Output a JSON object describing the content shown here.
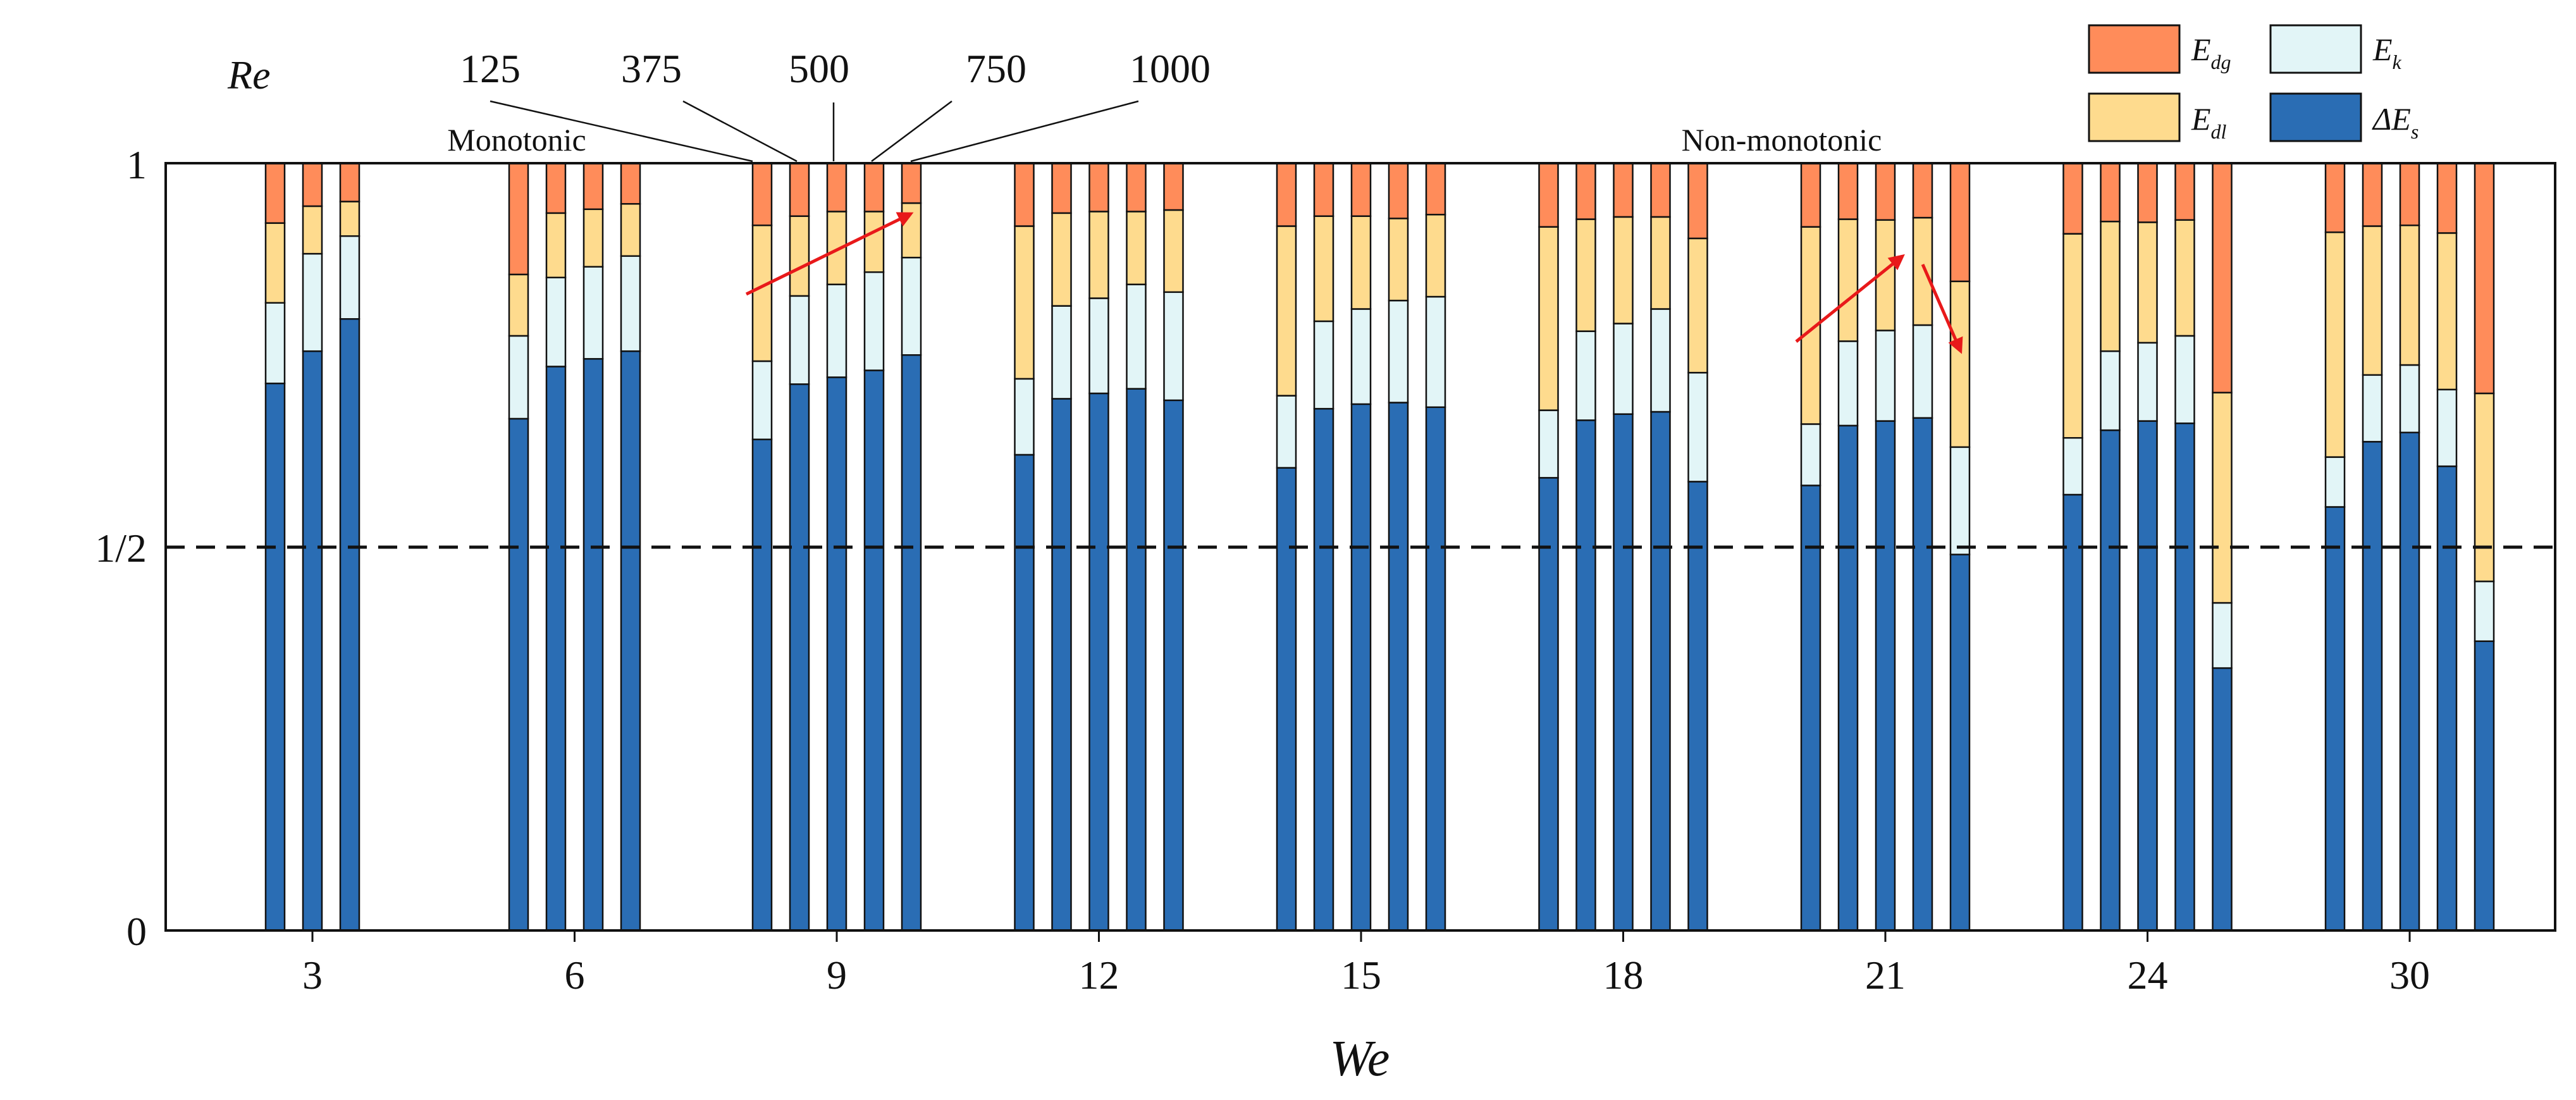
{
  "chart_data": {
    "type": "bar",
    "stacked": true,
    "normalized": true,
    "title": "",
    "xlabel": "We",
    "ylabel": "Re",
    "ylim": [
      0,
      1
    ],
    "y_ticks": [
      "0",
      "1/2",
      "1"
    ],
    "reference_line": {
      "y": 0.5,
      "style": "dashed"
    },
    "categories": [
      "3",
      "6",
      "9",
      "12",
      "15",
      "18",
      "21",
      "24",
      "30"
    ],
    "re_values": [
      "125",
      "375",
      "500",
      "750",
      "1000"
    ],
    "stack_order": [
      "ΔE_s",
      "E_k",
      "E_dl",
      "E_dg"
    ],
    "legend": [
      {
        "key": "E_dg",
        "base": "E",
        "sub": "dg",
        "color": "#FF8C5A"
      },
      {
        "key": "E_k",
        "base": "E",
        "sub": "k",
        "color": "#E2F5F7"
      },
      {
        "key": "E_dl",
        "base": "E",
        "sub": "dl",
        "color": "#FEDB8E"
      },
      {
        "key": "dE_s",
        "base": "ΔE",
        "sub": "s",
        "color": "#2A6DB4"
      }
    ],
    "groups": [
      {
        "we": "3",
        "bars": [
          {
            "re": "125",
            "dEs": 0.713,
            "Ek": 0.105,
            "Edl": 0.104,
            "Edg": 0.078
          },
          {
            "re": "375",
            "dEs": 0.755,
            "Ek": 0.127,
            "Edl": 0.062,
            "Edg": 0.056
          },
          {
            "re": "500",
            "dEs": 0.797,
            "Ek": 0.108,
            "Edl": 0.045,
            "Edg": 0.05
          }
        ]
      },
      {
        "we": "6",
        "bars": [
          {
            "re": "125",
            "dEs": 0.667,
            "Ek": 0.108,
            "Edl": 0.08,
            "Edg": 0.145
          },
          {
            "re": "375",
            "dEs": 0.735,
            "Ek": 0.116,
            "Edl": 0.084,
            "Edg": 0.065
          },
          {
            "re": "500",
            "dEs": 0.745,
            "Ek": 0.12,
            "Edl": 0.075,
            "Edg": 0.06
          },
          {
            "re": "750",
            "dEs": 0.755,
            "Ek": 0.124,
            "Edl": 0.068,
            "Edg": 0.053
          }
        ]
      },
      {
        "we": "9",
        "bars": [
          {
            "re": "125",
            "dEs": 0.64,
            "Ek": 0.102,
            "Edl": 0.177,
            "Edg": 0.081
          },
          {
            "re": "375",
            "dEs": 0.712,
            "Ek": 0.115,
            "Edl": 0.104,
            "Edg": 0.069
          },
          {
            "re": "500",
            "dEs": 0.721,
            "Ek": 0.121,
            "Edl": 0.095,
            "Edg": 0.063
          },
          {
            "re": "750",
            "dEs": 0.73,
            "Ek": 0.128,
            "Edl": 0.079,
            "Edg": 0.063
          },
          {
            "re": "1000",
            "dEs": 0.75,
            "Ek": 0.127,
            "Edl": 0.071,
            "Edg": 0.052
          }
        ]
      },
      {
        "we": "12",
        "bars": [
          {
            "re": "125",
            "dEs": 0.62,
            "Ek": 0.099,
            "Edl": 0.199,
            "Edg": 0.082
          },
          {
            "re": "375",
            "dEs": 0.693,
            "Ek": 0.121,
            "Edl": 0.121,
            "Edg": 0.065
          },
          {
            "re": "500",
            "dEs": 0.7,
            "Ek": 0.124,
            "Edl": 0.113,
            "Edg": 0.063
          },
          {
            "re": "750",
            "dEs": 0.706,
            "Ek": 0.136,
            "Edl": 0.095,
            "Edg": 0.063
          },
          {
            "re": "1000",
            "dEs": 0.691,
            "Ek": 0.141,
            "Edl": 0.107,
            "Edg": 0.061
          }
        ]
      },
      {
        "we": "15",
        "bars": [
          {
            "re": "125",
            "dEs": 0.603,
            "Ek": 0.094,
            "Edl": 0.221,
            "Edg": 0.082
          },
          {
            "re": "375",
            "dEs": 0.68,
            "Ek": 0.114,
            "Edl": 0.137,
            "Edg": 0.069
          },
          {
            "re": "500",
            "dEs": 0.686,
            "Ek": 0.124,
            "Edl": 0.121,
            "Edg": 0.069
          },
          {
            "re": "750",
            "dEs": 0.688,
            "Ek": 0.133,
            "Edl": 0.107,
            "Edg": 0.072
          },
          {
            "re": "1000",
            "dEs": 0.682,
            "Ek": 0.144,
            "Edl": 0.107,
            "Edg": 0.067
          }
        ]
      },
      {
        "we": "18",
        "bars": [
          {
            "re": "125",
            "dEs": 0.59,
            "Ek": 0.088,
            "Edl": 0.239,
            "Edg": 0.083
          },
          {
            "re": "375",
            "dEs": 0.665,
            "Ek": 0.116,
            "Edl": 0.146,
            "Edg": 0.073
          },
          {
            "re": "500",
            "dEs": 0.673,
            "Ek": 0.118,
            "Edl": 0.139,
            "Edg": 0.07
          },
          {
            "re": "750",
            "dEs": 0.676,
            "Ek": 0.134,
            "Edl": 0.12,
            "Edg": 0.07
          },
          {
            "re": "1000",
            "dEs": 0.585,
            "Ek": 0.142,
            "Edl": 0.175,
            "Edg": 0.098
          }
        ]
      },
      {
        "we": "21",
        "bars": [
          {
            "re": "125",
            "dEs": 0.58,
            "Ek": 0.08,
            "Edl": 0.257,
            "Edg": 0.083
          },
          {
            "re": "375",
            "dEs": 0.658,
            "Ek": 0.11,
            "Edl": 0.159,
            "Edg": 0.073
          },
          {
            "re": "500",
            "dEs": 0.664,
            "Ek": 0.118,
            "Edl": 0.144,
            "Edg": 0.074
          },
          {
            "re": "750",
            "dEs": 0.668,
            "Ek": 0.121,
            "Edl": 0.14,
            "Edg": 0.071
          },
          {
            "re": "1000",
            "dEs": 0.49,
            "Ek": 0.14,
            "Edl": 0.216,
            "Edg": 0.154
          }
        ]
      },
      {
        "we": "24",
        "bars": [
          {
            "re": "125",
            "dEs": 0.568,
            "Ek": 0.074,
            "Edl": 0.266,
            "Edg": 0.092
          },
          {
            "re": "375",
            "dEs": 0.652,
            "Ek": 0.103,
            "Edl": 0.169,
            "Edg": 0.076
          },
          {
            "re": "500",
            "dEs": 0.664,
            "Ek": 0.102,
            "Edl": 0.157,
            "Edg": 0.077
          },
          {
            "re": "750",
            "dEs": 0.661,
            "Ek": 0.114,
            "Edl": 0.151,
            "Edg": 0.074
          },
          {
            "re": "1000",
            "dEs": 0.342,
            "Ek": 0.085,
            "Edl": 0.274,
            "Edg": 0.299
          }
        ]
      },
      {
        "we": "30",
        "bars": [
          {
            "re": "125",
            "dEs": 0.552,
            "Ek": 0.065,
            "Edl": 0.293,
            "Edg": 0.09
          },
          {
            "re": "375",
            "dEs": 0.637,
            "Ek": 0.087,
            "Edl": 0.194,
            "Edg": 0.082
          },
          {
            "re": "500",
            "dEs": 0.649,
            "Ek": 0.088,
            "Edl": 0.182,
            "Edg": 0.081
          },
          {
            "re": "750",
            "dEs": 0.605,
            "Ek": 0.1,
            "Edl": 0.204,
            "Edg": 0.091
          },
          {
            "re": "1000",
            "dEs": 0.377,
            "Ek": 0.078,
            "Edl": 0.245,
            "Edg": 0.3
          }
        ]
      }
    ],
    "annotations": [
      {
        "text": "Monotonic",
        "we": "6"
      },
      {
        "text": "Non-monotonic",
        "we": "21"
      }
    ]
  }
}
